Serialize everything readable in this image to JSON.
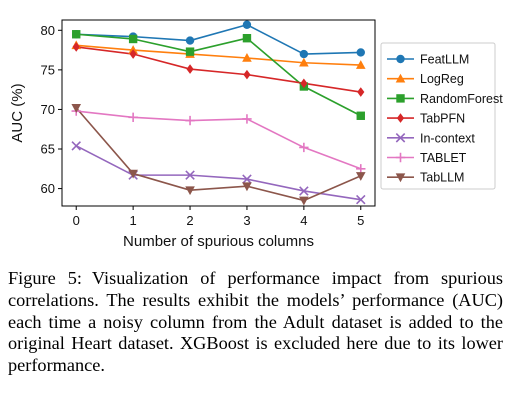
{
  "chart_data": {
    "type": "line",
    "xlabel": "Number of spurious columns",
    "ylabel": "AUC (%)",
    "x": [
      0,
      1,
      2,
      3,
      4,
      5
    ],
    "xticks": [
      "0",
      "1",
      "2",
      "3",
      "4",
      "5"
    ],
    "yticks": [
      "60",
      "65",
      "70",
      "75",
      "80"
    ],
    "ylim": [
      57.8,
      81.3
    ],
    "xlim": [
      -0.25,
      5.25
    ],
    "grid": false,
    "legend": "right",
    "series": [
      {
        "name": "FeatLLM",
        "color": "#1f77b4",
        "marker": "circle",
        "values": [
          79.5,
          79.2,
          78.7,
          80.7,
          77.0,
          77.2
        ]
      },
      {
        "name": "LogReg",
        "color": "#ff7f0e",
        "marker": "triangle",
        "values": [
          78.1,
          77.5,
          77.0,
          76.5,
          75.9,
          75.6
        ]
      },
      {
        "name": "RandomForest",
        "color": "#2ca02c",
        "marker": "square",
        "values": [
          79.5,
          78.9,
          77.3,
          79.0,
          72.9,
          69.2
        ]
      },
      {
        "name": "TabPFN",
        "color": "#d62728",
        "marker": "diamond",
        "values": [
          77.9,
          77.0,
          75.1,
          74.4,
          73.3,
          72.2
        ]
      },
      {
        "name": "In-context",
        "color": "#9467bd",
        "marker": "x",
        "values": [
          65.4,
          61.7,
          61.7,
          61.2,
          59.7,
          58.6
        ]
      },
      {
        "name": "TABLET",
        "color": "#e377c2",
        "marker": "plus",
        "values": [
          69.8,
          69.0,
          68.6,
          68.8,
          65.2,
          62.5
        ]
      },
      {
        "name": "TabLLM",
        "color": "#8c564b",
        "marker": "triangle-down",
        "values": [
          70.2,
          61.9,
          59.8,
          60.3,
          58.5,
          61.6
        ]
      }
    ]
  },
  "caption": {
    "label": "Figure 5:",
    "text": "Visualization of performance impact from spurious correlations. The results exhibit the models’ performance (AUC) each time a noisy column from the Adult dataset is added to the original Heart dataset. XGBoost is excluded here due to its lower performance."
  }
}
